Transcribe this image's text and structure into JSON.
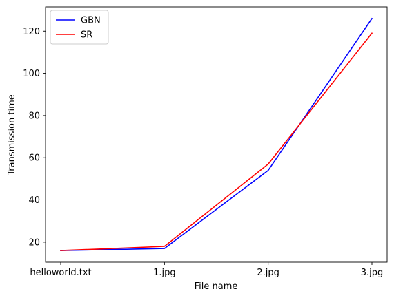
{
  "chart_data": {
    "type": "line",
    "xlabel": "File name",
    "ylabel": "Transmission time",
    "categories": [
      "helloworld.txt",
      "1.jpg",
      "2.jpg",
      "3.jpg"
    ],
    "ylim": [
      10.5,
      131.5
    ],
    "yticks": [
      20,
      40,
      60,
      80,
      100,
      120
    ],
    "grid": false,
    "legend_position": "top-left",
    "series": [
      {
        "name": "GBN",
        "color": "#0000ff",
        "values": [
          16,
          17,
          54,
          126
        ]
      },
      {
        "name": "SR",
        "color": "#ff0000",
        "values": [
          16,
          18,
          57,
          119
        ]
      }
    ]
  }
}
